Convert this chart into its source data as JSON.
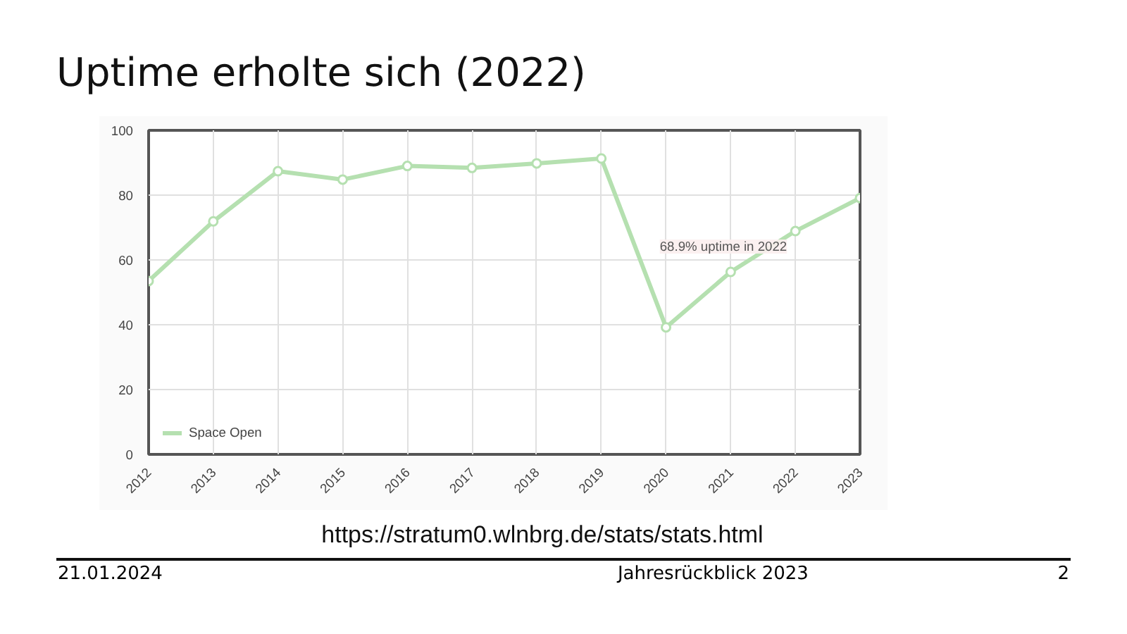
{
  "chart_data": {
    "type": "line",
    "title": "Uptime erholte sich (2022)",
    "categories": [
      "2012",
      "2013",
      "2014",
      "2015",
      "2016",
      "2017",
      "2018",
      "2019",
      "2020",
      "2021",
      "2022",
      "2023"
    ],
    "series": [
      {
        "name": "Space Open",
        "color": "#b5e0b0",
        "values": [
          53.5,
          71.9,
          87.4,
          84.8,
          89.0,
          88.4,
          89.8,
          91.3,
          39.2,
          56.3,
          68.9,
          79.1
        ]
      }
    ],
    "ylim": [
      0,
      100
    ],
    "yticks": [
      0,
      20,
      40,
      60,
      80,
      100
    ],
    "grid": true,
    "legend": "bottom left",
    "marker": "circle",
    "line_style": "solid",
    "annotations": [
      {
        "text": "68.9% uptime in 2022",
        "x": "2022",
        "y": 68.9
      },
      "https://stratum0.wlnbrg.de/stats/stats.html",
      "21.01.2024",
      "Jahresrückblick 2023",
      "2"
    ]
  }
}
